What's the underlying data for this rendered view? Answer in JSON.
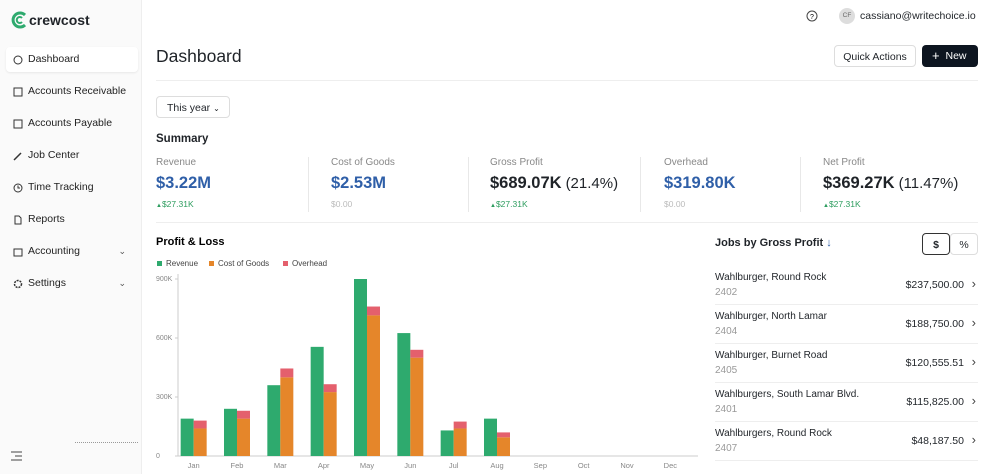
{
  "sidebar": {
    "logo": "crewcost",
    "nav": [
      "Dashboard",
      "Accounts Receivable",
      "Accounts Payable",
      "Job Center",
      "Time Tracking",
      "Reports",
      "Accounting",
      "Settings"
    ]
  },
  "header": {
    "user_initials": "CF",
    "user_email": "cassiano@writechoice.io",
    "title": "Dashboard",
    "quick_actions": "Quick Actions",
    "new_button": "New",
    "period": "This year"
  },
  "summary": {
    "title": "Summary",
    "metrics": [
      {
        "label": "Revenue",
        "value": "$3.22M",
        "change": "$27.31K"
      },
      {
        "label": "Cost of Goods",
        "value": "$2.53M",
        "change": "$0.00"
      },
      {
        "label": "Gross Profit",
        "value": "$689.07K",
        "percent": "(21.4%)",
        "change": "$27.31K"
      },
      {
        "label": "Overhead",
        "value": "$319.80K",
        "change": "$0.00"
      },
      {
        "label": "Net Profit",
        "value": "$369.27K",
        "percent": "(11.47%)",
        "change": "$27.31K"
      }
    ]
  },
  "chart_data": {
    "type": "bar",
    "title": "Profit & Loss",
    "categories": [
      "Jan",
      "Feb",
      "Mar",
      "Apr",
      "May",
      "Jun",
      "Jul",
      "Aug",
      "Sep",
      "Oct",
      "Nov",
      "Dec"
    ],
    "series": [
      {
        "name": "Revenue",
        "color": "#2eaa6e",
        "stack": 0,
        "values": [
          190000,
          240000,
          360000,
          555000,
          900000,
          625000,
          130000,
          190000,
          0,
          0,
          0,
          0
        ]
      },
      {
        "name": "Cost of Goods",
        "color": "#e5862a",
        "stack": 1,
        "values": [
          140000,
          190000,
          400000,
          325000,
          715000,
          500000,
          140000,
          95000,
          0,
          0,
          0,
          0
        ]
      },
      {
        "name": "Overhead",
        "color": "#e4606d",
        "stack": 1,
        "values": [
          40000,
          40000,
          45000,
          40000,
          45000,
          40000,
          35000,
          25000,
          0,
          0,
          0,
          0
        ]
      }
    ],
    "ylim": [
      0,
      900000
    ],
    "yticks": [
      0,
      {
        "value": 300000,
        "label": "300K"
      },
      {
        "value": 600000,
        "label": "600K"
      },
      {
        "value": 900000,
        "label": "900K"
      }
    ],
    "grid": false
  },
  "jobs": {
    "title": "Jobs by Gross Profit",
    "toggle": [
      "$",
      "%"
    ],
    "rows": [
      {
        "name": "Wahlburger, Round Rock",
        "code": "2402",
        "amount": "$237,500.00"
      },
      {
        "name": "Wahlburger, North Lamar",
        "code": "2404",
        "amount": "$188,750.00"
      },
      {
        "name": "Wahlburger, Burnet Road",
        "code": "2405",
        "amount": "$120,555.51"
      },
      {
        "name": "Wahlburgers, South Lamar Blvd.",
        "code": "2401",
        "amount": "$115,825.00"
      },
      {
        "name": "Wahlburgers, Round Rock",
        "code": "2407",
        "amount": "$48,187.50"
      }
    ]
  }
}
